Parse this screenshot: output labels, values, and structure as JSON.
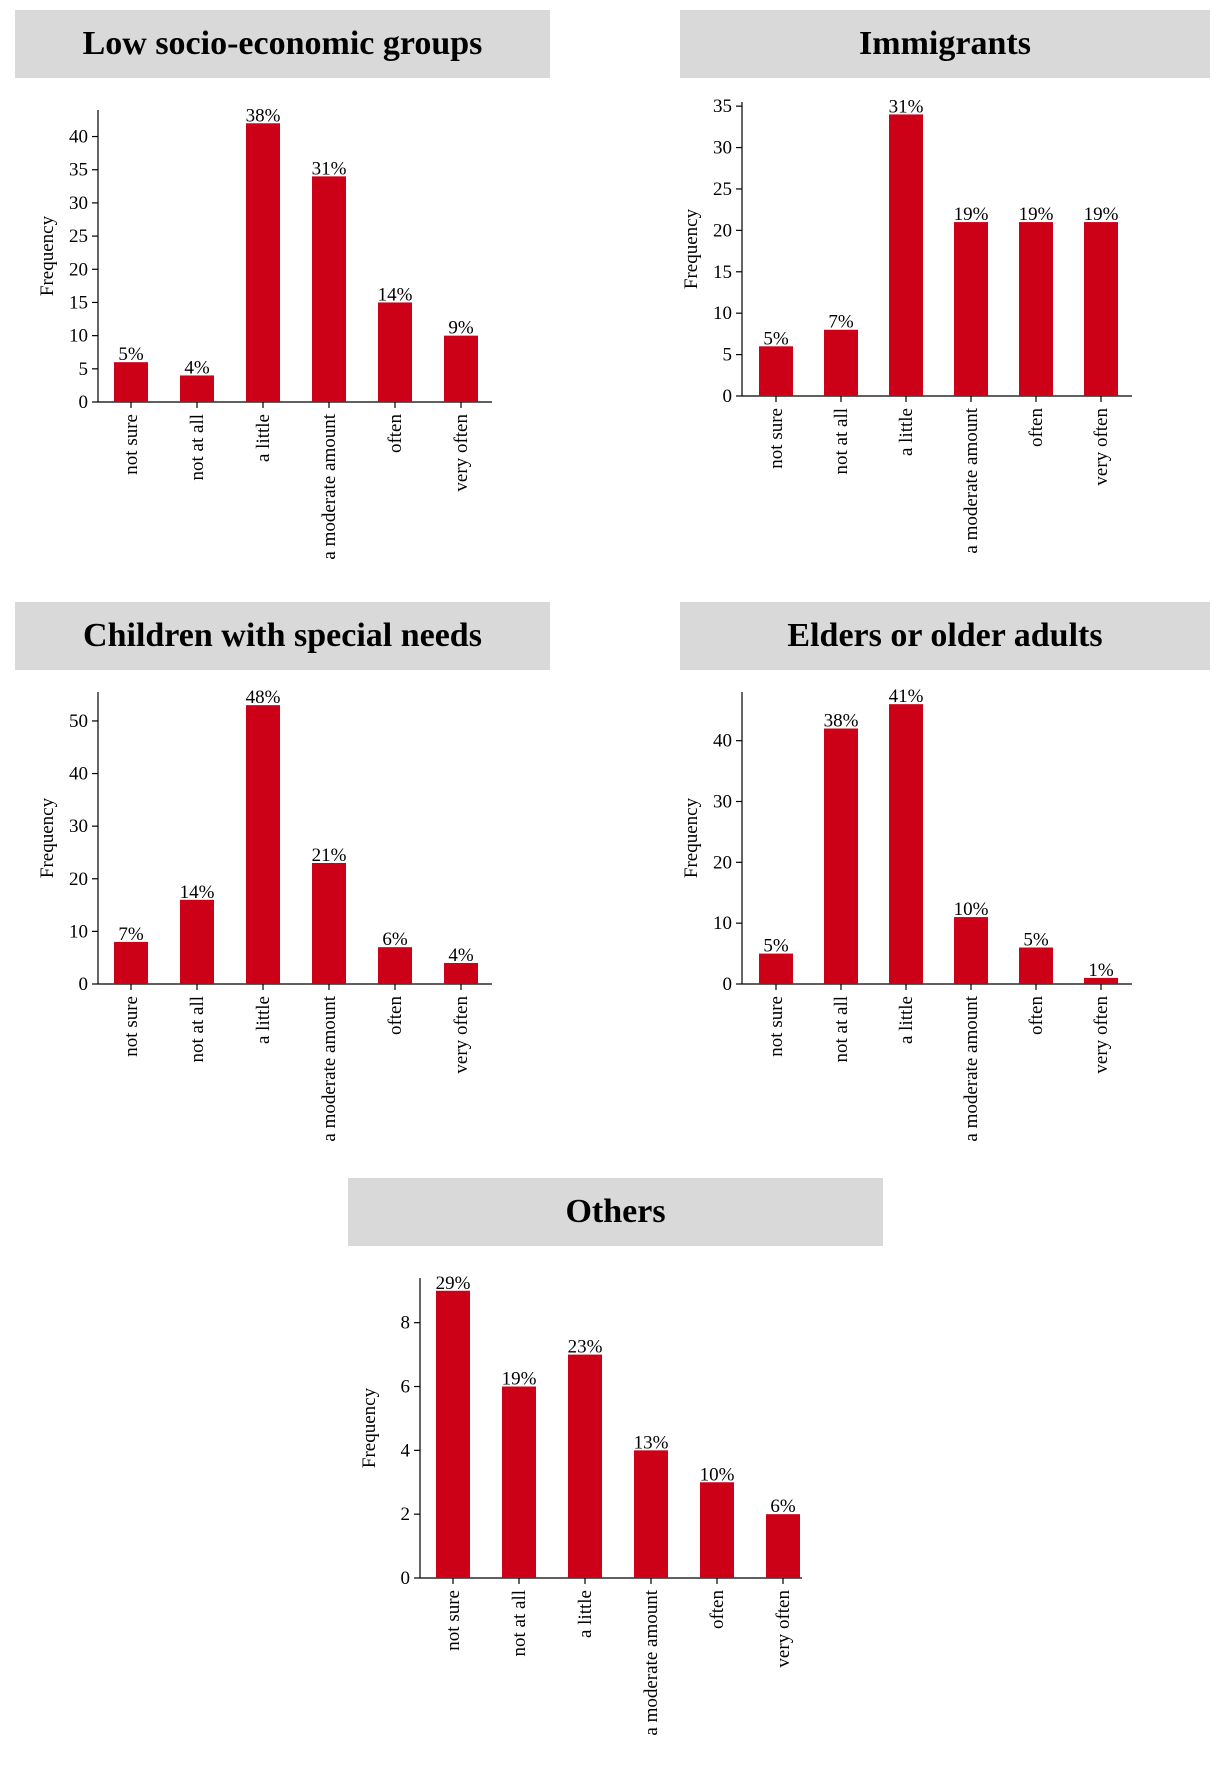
{
  "style": {
    "bar_color": "#cc0017",
    "title_bg": "#d9d9d9"
  },
  "chart_data": [
    {
      "type": "bar",
      "title": "Low socio-economic groups",
      "ylabel": "Frequency",
      "categories": [
        "not sure",
        "not at all",
        "a little",
        "a moderate amount",
        "often",
        "very often"
      ],
      "values": [
        6,
        4,
        42,
        34,
        15,
        10
      ],
      "labels": [
        "5%",
        "4%",
        "38%",
        "31%",
        "14%",
        "9%"
      ],
      "yticks": [
        0,
        5,
        10,
        15,
        20,
        25,
        30,
        35,
        40
      ],
      "ylim": [
        0,
        44
      ]
    },
    {
      "type": "bar",
      "title": "Immigrants",
      "ylabel": "Frequency",
      "categories": [
        "not sure",
        "not at all",
        "a little",
        "a moderate amount",
        "often",
        "very often"
      ],
      "values": [
        6,
        8,
        34,
        21,
        21,
        21
      ],
      "labels": [
        "5%",
        "7%",
        "31%",
        "19%",
        "19%",
        "19%"
      ],
      "yticks": [
        0,
        5,
        10,
        15,
        20,
        25,
        30,
        35
      ],
      "ylim": [
        0,
        35.5
      ]
    },
    {
      "type": "bar",
      "title": "Children with special needs",
      "ylabel": "Frequency",
      "categories": [
        "not sure",
        "not at all",
        "a little",
        "a moderate amount",
        "often",
        "very often"
      ],
      "values": [
        8,
        16,
        53,
        23,
        7,
        4
      ],
      "labels": [
        "7%",
        "14%",
        "48%",
        "21%",
        "6%",
        "4%"
      ],
      "yticks": [
        0,
        10,
        20,
        30,
        40,
        50
      ],
      "ylim": [
        0,
        55.5
      ]
    },
    {
      "type": "bar",
      "title": "Elders or older adults",
      "ylabel": "Frequency",
      "categories": [
        "not sure",
        "not at all",
        "a little",
        "a moderate amount",
        "often",
        "very often"
      ],
      "values": [
        5,
        42,
        46,
        11,
        6,
        1
      ],
      "labels": [
        "5%",
        "38%",
        "41%",
        "10%",
        "5%",
        "1%"
      ],
      "yticks": [
        0,
        10,
        20,
        30,
        40
      ],
      "ylim": [
        0,
        48
      ]
    },
    {
      "type": "bar",
      "title": "Others",
      "ylabel": "Frequency",
      "categories": [
        "not sure",
        "not at all",
        "a little",
        "a moderate amount",
        "often",
        "very often"
      ],
      "values": [
        9,
        6,
        7,
        4,
        3,
        2
      ],
      "labels": [
        "29%",
        "19%",
        "23%",
        "13%",
        "10%",
        "6%"
      ],
      "yticks": [
        0,
        2,
        4,
        6,
        8
      ],
      "ylim": [
        0,
        9.4
      ]
    }
  ]
}
